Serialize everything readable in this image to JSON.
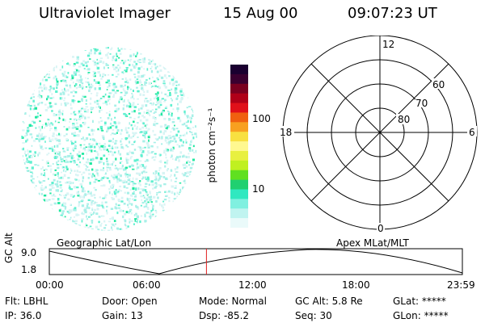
{
  "header": {
    "title": "Ultraviolet Imager",
    "date": "15 Aug 00",
    "time": "09:07:23 UT"
  },
  "colorbar": {
    "unit_label": "photon cm⁻²s⁻¹",
    "ticks": [
      "100",
      "10"
    ],
    "colors": [
      "#1a0030",
      "#3a0030",
      "#7a0020",
      "#b00018",
      "#e0101a",
      "#f06010",
      "#f8a020",
      "#f8e040",
      "#fff890",
      "#e8f040",
      "#c0f020",
      "#60e020",
      "#20d070",
      "#30e8c0",
      "#80f0e0",
      "#c0f4f0",
      "#eafafa"
    ]
  },
  "polar_plot": {
    "mlt_labels": {
      "top": "12",
      "left": "18",
      "right": "6",
      "bottom": "0"
    },
    "lat_labels": [
      "60",
      "70",
      "80"
    ]
  },
  "timeline": {
    "left_label": "Geographic Lat/Lon",
    "right_label": "Apex MLat/MLT",
    "y_axis_label": "GC Alt",
    "y_ticks": [
      "9.0",
      "1.8"
    ],
    "x_ticks": [
      "00:00",
      "06:00",
      "12:00",
      "18:00",
      "23:59"
    ],
    "marker_time": "09:07:23",
    "marker_color": "#e02020"
  },
  "info": {
    "flt": "Flt: LBHL",
    "ip": "IP: 36.0",
    "door": "Door: Open",
    "gain": "Gain: 13",
    "mode": "Mode: Normal",
    "dsp": "Dsp:  -85.2",
    "gc_alt": "GC Alt: 5.8 Re",
    "seq": "Seq: 30",
    "glat": "GLat: *****",
    "glon": "GLon: *****"
  },
  "image": {
    "colors": [
      "#20e8a0",
      "#60f0d0",
      "#a8f0e8",
      "#d8f4f4"
    ]
  }
}
